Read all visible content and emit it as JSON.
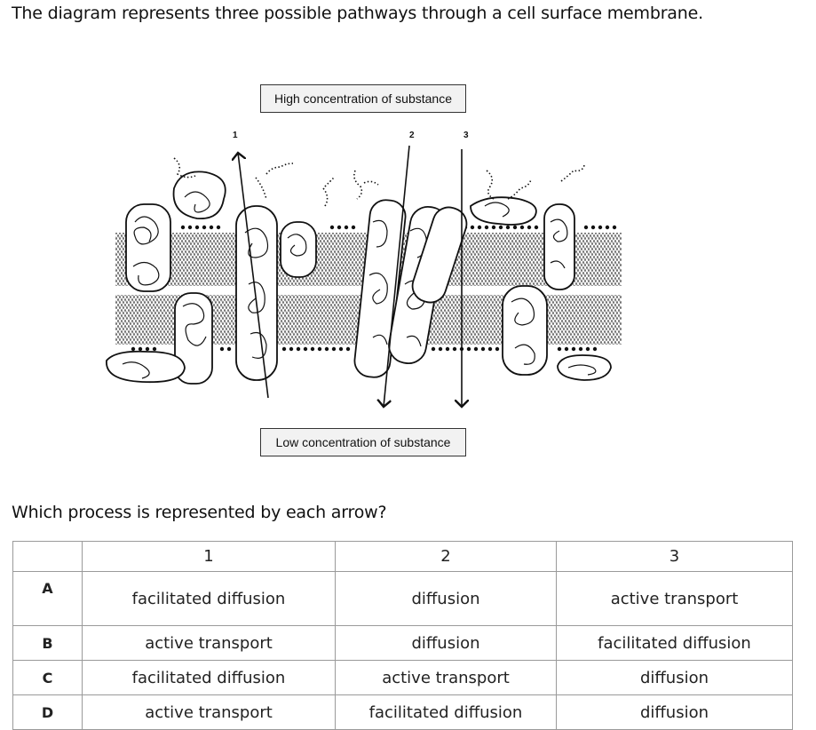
{
  "question": {
    "intro": "The diagram represents three possible pathways through a cell surface membrane.",
    "prompt": "Which process is represented by each arrow?"
  },
  "diagram": {
    "top_label": "High concentration of substance",
    "bottom_label": "Low concentration of substance",
    "arrow_labels": [
      "1",
      "2",
      "3"
    ]
  },
  "table": {
    "headers": [
      "",
      "1",
      "2",
      "3"
    ],
    "rows": [
      {
        "letter": "A",
        "c1": "facilitated diffusion",
        "c2": "diffusion",
        "c3": "active transport"
      },
      {
        "letter": "B",
        "c1": "active transport",
        "c2": "diffusion",
        "c3": "facilitated diffusion"
      },
      {
        "letter": "C",
        "c1": "facilitated diffusion",
        "c2": "active transport",
        "c3": "diffusion"
      },
      {
        "letter": "D",
        "c1": "active transport",
        "c2": "facilitated diffusion",
        "c3": "diffusion"
      }
    ]
  }
}
